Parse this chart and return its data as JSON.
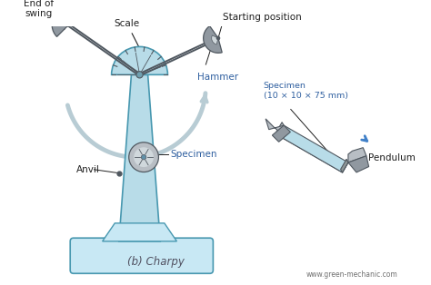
{
  "bg_color": "#ffffff",
  "light_blue": "#b8dce8",
  "light_blue2": "#c8e8f4",
  "steel_gray": "#9098a0",
  "steel_gray2": "#b8bec4",
  "dark_gray": "#505860",
  "teal_edge": "#4898b0",
  "label_color": "#4060a0",
  "blue_label": "#3060a0",
  "black": "#202020",
  "title": "(b) Charpy",
  "watermark": "www.green-mechanic.com",
  "arrow_color": "#b8ccd4",
  "labels": {
    "scale": "Scale",
    "starting_position": "Starting position",
    "hammer": "Hammer",
    "end_of_swing": "End of\nswing",
    "anvil": "Anvil",
    "specimen_main": "Specimen",
    "specimen_detail": "Specimen\n(10 × 10 × 75 mm)",
    "pendulum": "Pendulum"
  }
}
